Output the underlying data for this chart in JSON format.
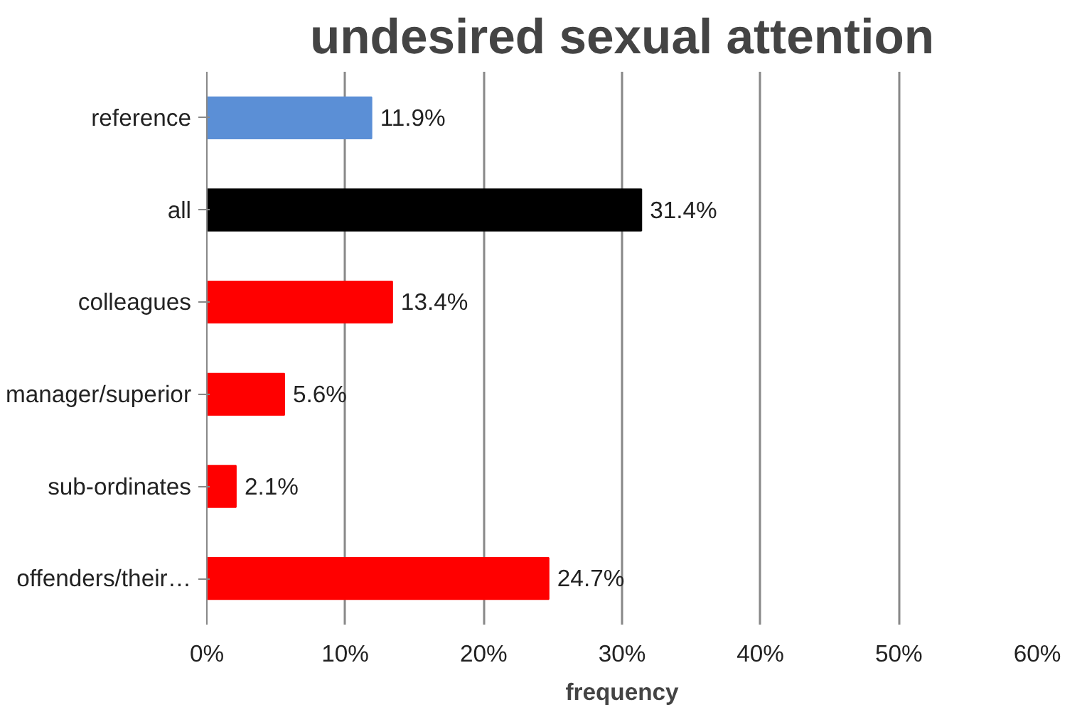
{
  "chart_data": {
    "type": "bar",
    "orientation": "horizontal",
    "title": "undesired sexual attention",
    "xlabel": "frequency",
    "categories": [
      "reference",
      "all",
      "colleagues",
      "manager/superior",
      "sub-ordinates",
      "offenders/their…"
    ],
    "values": [
      11.9,
      31.4,
      13.4,
      5.6,
      2.1,
      24.7
    ],
    "colors": [
      "#5b8fd6",
      "#000000",
      "#ff0000",
      "#ff0000",
      "#ff0000",
      "#ff0000"
    ],
    "value_labels": [
      "11.9%",
      "31.4%",
      "13.4%",
      "5.6%",
      "2.1%",
      "24.7%"
    ],
    "xlim": [
      0,
      60
    ],
    "xticks": [
      {
        "value": 0,
        "label": "0%"
      },
      {
        "value": 10,
        "label": "10%"
      },
      {
        "value": 20,
        "label": "20%"
      },
      {
        "value": 30,
        "label": "30%"
      },
      {
        "value": 40,
        "label": "40%"
      },
      {
        "value": 50,
        "label": "50%"
      },
      {
        "value": 60,
        "label": "60%"
      }
    ],
    "grid": "x"
  }
}
